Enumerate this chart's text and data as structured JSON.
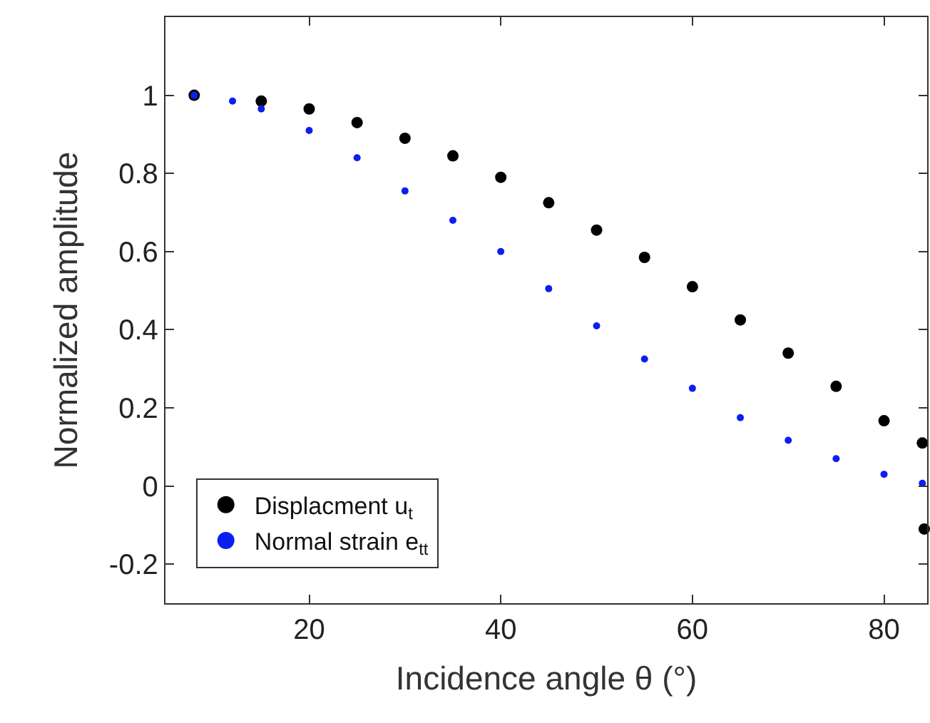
{
  "chart_data": {
    "type": "scatter",
    "xlabel": "Incidence angle θ (°)",
    "ylabel": "Normalized amplitude",
    "xlim": [
      5,
      84.5
    ],
    "ylim": [
      -0.3,
      1.2
    ],
    "xticks": [
      20,
      40,
      60,
      80
    ],
    "yticks": [
      -0.2,
      0,
      0.2,
      0.4,
      0.6,
      0.8,
      1
    ],
    "legend": "bottom left",
    "marker": "circle",
    "series": [
      {
        "name": "Displacment u$_{t}$",
        "color": "#000000",
        "x": [
          8,
          15,
          20,
          25,
          30,
          35,
          40,
          45,
          50,
          55,
          60,
          65,
          70,
          75,
          80,
          84,
          84.2
        ],
        "values": [
          1,
          0.985,
          0.965,
          0.93,
          0.89,
          0.845,
          0.79,
          0.725,
          0.655,
          0.585,
          0.51,
          0.425,
          0.34,
          0.255,
          0.167,
          0.11,
          -0.11
        ]
      },
      {
        "name": "Normal strain e$_{tt}$",
        "color": "#0a1ff0",
        "x": [
          8,
          12,
          15,
          20,
          25,
          30,
          35,
          40,
          45,
          50,
          55,
          60,
          65,
          70,
          75,
          80,
          84
        ],
        "values": [
          1,
          0.985,
          0.965,
          0.91,
          0.84,
          0.755,
          0.68,
          0.6,
          0.505,
          0.41,
          0.325,
          0.25,
          0.175,
          0.117,
          0.07,
          0.03,
          0.007
        ]
      }
    ]
  }
}
